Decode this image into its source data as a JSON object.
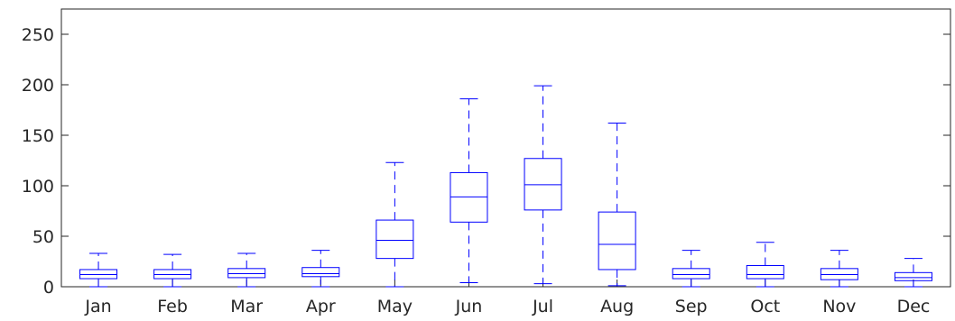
{
  "chart_data": {
    "type": "boxplot",
    "title": "",
    "xlabel": "",
    "ylabel": "",
    "ylim": [
      0,
      275
    ],
    "yticks": [
      0,
      50,
      100,
      150,
      200,
      250
    ],
    "ytick_labels": [
      "0",
      "50",
      "100",
      "150",
      "200",
      "250"
    ],
    "grid": false,
    "box_color": "#0000ff",
    "categories": [
      "Jan",
      "Feb",
      "Mar",
      "Apr",
      "May",
      "Jun",
      "Jul",
      "Aug",
      "Sep",
      "Oct",
      "Nov",
      "Dec"
    ],
    "boxes": [
      {
        "label": "Jan",
        "min": 0,
        "q1": 8,
        "median": 12,
        "q3": 17,
        "max": 33
      },
      {
        "label": "Feb",
        "min": 0,
        "q1": 8,
        "median": 12,
        "q3": 17,
        "max": 32
      },
      {
        "label": "Mar",
        "min": 0,
        "q1": 9,
        "median": 13,
        "q3": 18,
        "max": 33
      },
      {
        "label": "Apr",
        "min": 0,
        "q1": 10,
        "median": 13,
        "q3": 19,
        "max": 36
      },
      {
        "label": "May",
        "min": 0,
        "q1": 28,
        "median": 46,
        "q3": 66,
        "max": 123
      },
      {
        "label": "Jun",
        "min": 4,
        "q1": 64,
        "median": 89,
        "q3": 113,
        "max": 186
      },
      {
        "label": "Jul",
        "min": 3,
        "q1": 76,
        "median": 101,
        "q3": 127,
        "max": 199
      },
      {
        "label": "Aug",
        "min": 1,
        "q1": 17,
        "median": 42,
        "q3": 74,
        "max": 162
      },
      {
        "label": "Sep",
        "min": 0,
        "q1": 8,
        "median": 12,
        "q3": 18,
        "max": 36
      },
      {
        "label": "Oct",
        "min": 0,
        "q1": 8,
        "median": 12,
        "q3": 21,
        "max": 44
      },
      {
        "label": "Nov",
        "min": 0,
        "q1": 7,
        "median": 12,
        "q3": 18,
        "max": 36
      },
      {
        "label": "Dec",
        "min": 0,
        "q1": 6,
        "median": 9,
        "q3": 14,
        "max": 28
      }
    ]
  }
}
